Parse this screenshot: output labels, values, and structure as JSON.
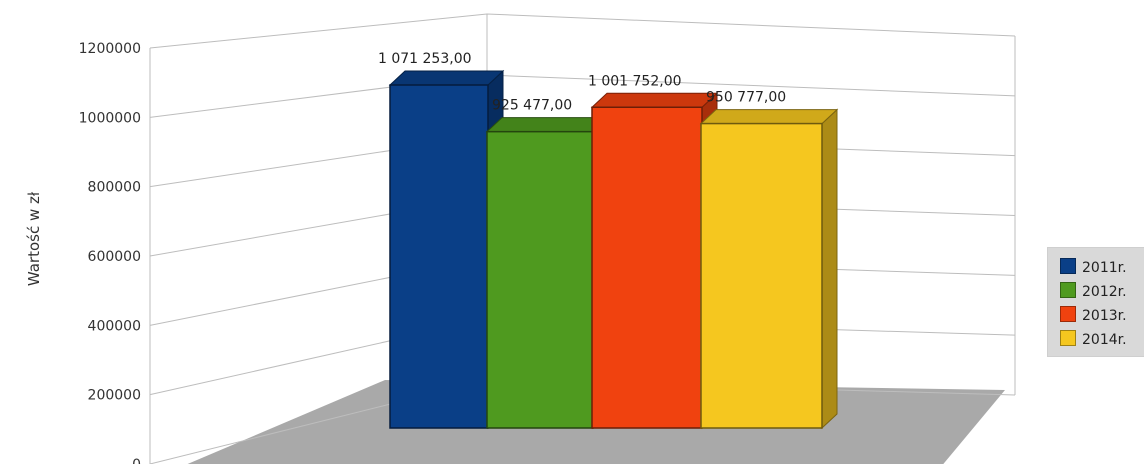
{
  "chart_data": {
    "type": "bar",
    "categories": [
      "2011r.",
      "2012r.",
      "2013r.",
      "2014r."
    ],
    "values": [
      1071253.0,
      925477.0,
      1001752.0,
      950777.0
    ],
    "value_labels": [
      "1 071 253,00",
      "925 477,00",
      "1 001 752,00",
      "950 777,00"
    ],
    "title": "",
    "xlabel": "",
    "ylabel": "Wartość w zł",
    "ylim": [
      0,
      1200000
    ],
    "yticks": [
      0,
      200000,
      400000,
      600000,
      800000,
      1000000,
      1200000
    ],
    "ytick_labels": [
      "0",
      "200000",
      "400000",
      "600000",
      "800000",
      "1000000",
      "1200000"
    ],
    "grid": true,
    "legend_position": "right",
    "style": "3d-column"
  },
  "legend": {
    "items": [
      {
        "label": "2011r.",
        "color": "#0a3f87"
      },
      {
        "label": "2012r.",
        "color": "#4f9a1f"
      },
      {
        "label": "2013r.",
        "color": "#f0420f"
      },
      {
        "label": "2014r.",
        "color": "#f5c71f"
      }
    ]
  }
}
